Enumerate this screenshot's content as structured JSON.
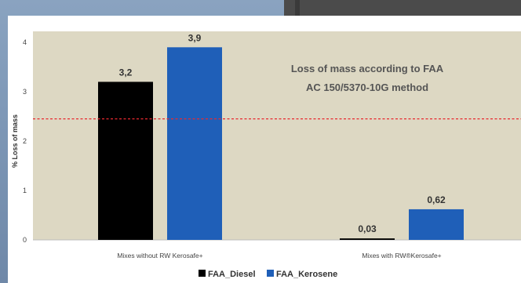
{
  "chart_data": {
    "type": "bar",
    "title": "",
    "annotation_lines": [
      "Loss of mass according to FAA",
      "AC 150/5370-10G method"
    ],
    "ylabel": "% Loss of mass",
    "xlabel": "",
    "ylim": [
      0,
      4
    ],
    "yticks": [
      "0",
      "1",
      "2",
      "3",
      "4"
    ],
    "categories": [
      "Mixes without RW Kerosafe+",
      "Mixes with RW®Kerosafe+"
    ],
    "series": [
      {
        "name": "FAA_Diesel",
        "color": "#000000",
        "values": [
          3.2,
          0.03
        ],
        "labels": [
          "3,2",
          "0,03"
        ]
      },
      {
        "name": "FAA_Kerosene",
        "color": "#1f5fb8",
        "values": [
          3.9,
          0.62
        ],
        "labels": [
          "3,9",
          "0,62"
        ]
      }
    ],
    "reference_line": {
      "value": 2.45,
      "color": "#e8292f",
      "style": "dashed"
    },
    "plot_background": "#ddd8c3",
    "grid": false,
    "legend_position": "bottom"
  }
}
